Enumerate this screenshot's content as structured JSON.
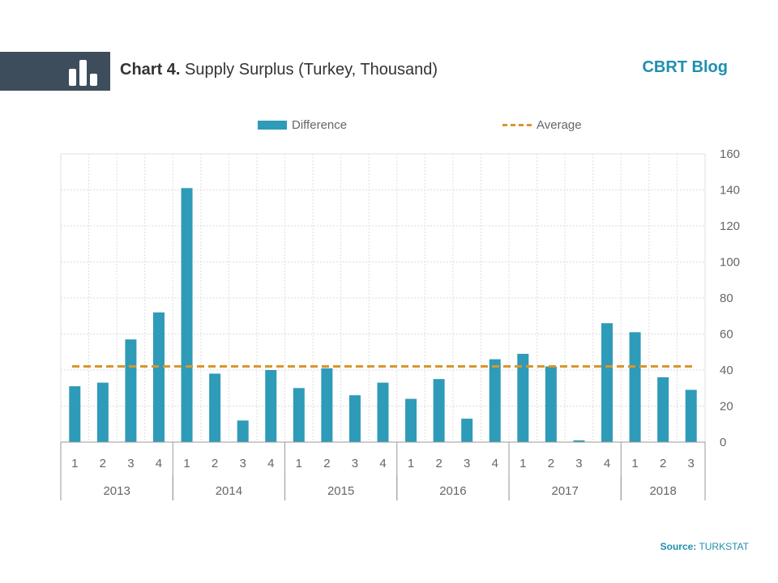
{
  "header": {
    "chart_number": "Chart 4.",
    "title": "Supply Surplus",
    "subtitle": "(Turkey, Thousand)",
    "brand": "CBRT Blog"
  },
  "footer": {
    "source_label": "Source:",
    "source_value": "TURKSTAT"
  },
  "colors": {
    "bar": "#2e9bb8",
    "average": "#d9962c",
    "header_band": "#3d4d5c",
    "brand": "#1f8fb0"
  },
  "chart_data": {
    "type": "bar",
    "categories": [
      "1",
      "2",
      "3",
      "4",
      "1",
      "2",
      "3",
      "4",
      "1",
      "2",
      "3",
      "4",
      "1",
      "2",
      "3",
      "4",
      "1",
      "2",
      "3",
      "4",
      "1",
      "2",
      "3"
    ],
    "groups": [
      {
        "label": "2013",
        "count": 4
      },
      {
        "label": "2014",
        "count": 4
      },
      {
        "label": "2015",
        "count": 4
      },
      {
        "label": "2016",
        "count": 4
      },
      {
        "label": "2017",
        "count": 4
      },
      {
        "label": "2018",
        "count": 3
      }
    ],
    "series": [
      {
        "name": "Difference",
        "type": "bar",
        "values": [
          31,
          33,
          57,
          72,
          141,
          38,
          12,
          40,
          30,
          41,
          26,
          33,
          24,
          35,
          13,
          46,
          49,
          42,
          1,
          66,
          61,
          36,
          29
        ]
      },
      {
        "name": "Average",
        "type": "line",
        "style": "dashed",
        "value": 42
      }
    ],
    "ylim": [
      0,
      160
    ],
    "yticks": [
      0,
      20,
      40,
      60,
      80,
      100,
      120,
      140,
      160
    ],
    "y_axis_side": "right",
    "grid": true,
    "legend": "top-center"
  }
}
